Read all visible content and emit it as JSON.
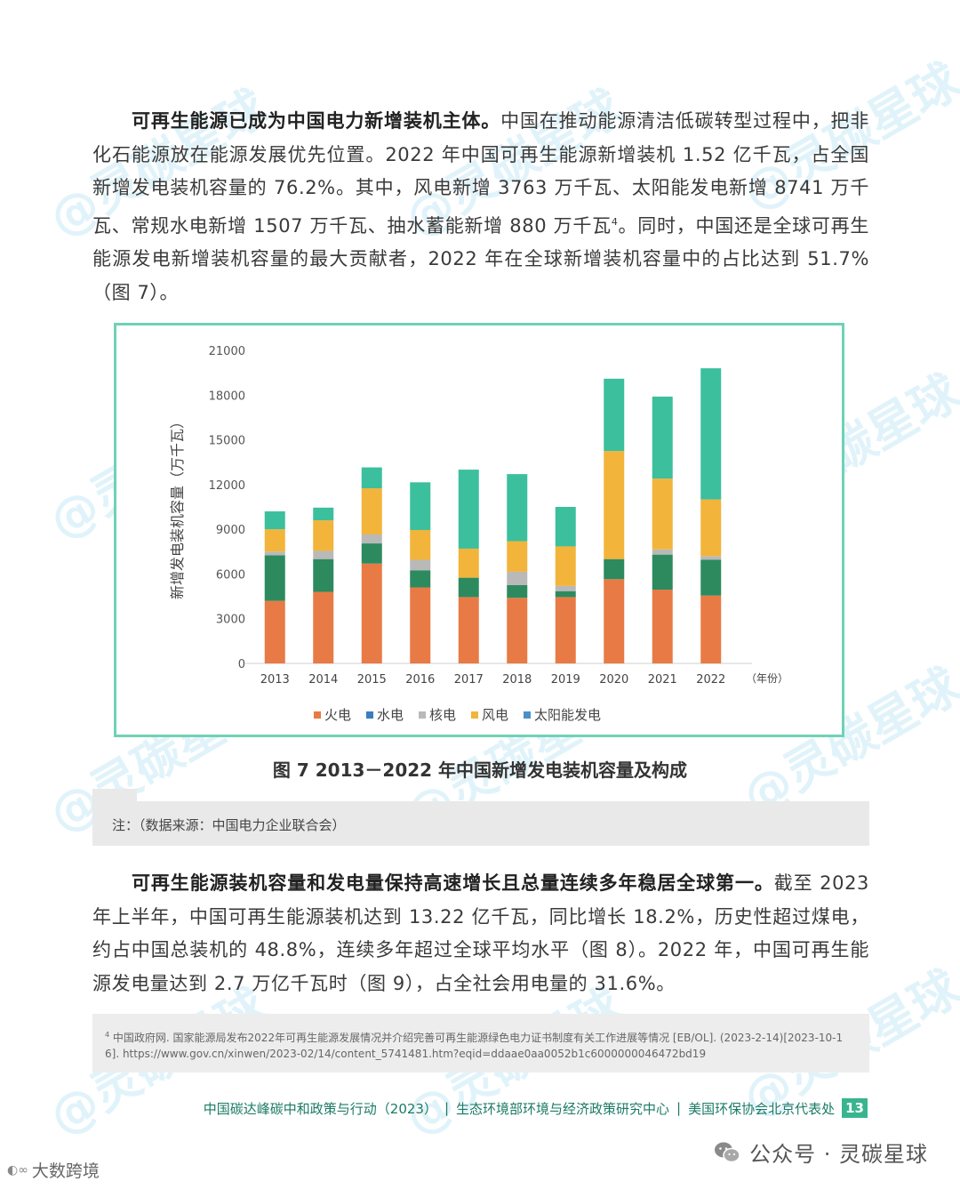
{
  "paragraph1": {
    "bold_lead": "可再生能源已成为中国电力新增装机主体。",
    "text_a": "中国在推动能源清洁低碳转型过程中，把非化石能源放在能源发展优先位置。2022 年中国可再生能源新增装机 1.52 亿千瓦，占全国新增发电装机容量的 76.2%。其中，风电新增 3763 万千瓦、太阳能发电新增 8741 万千瓦、常规水电新增 1507 万千瓦、抽水蓄能新增 880 万千瓦",
    "footnote_ref": "4",
    "text_b": "。同时，中国还是全球可再生能源发电新增装机容量的最大贡献者，2022 年在全球新增装机容量中的占比达到 51.7%（图 7）。"
  },
  "chart_data": {
    "type": "bar",
    "stacked": true,
    "ylabel": "新增发电装机容量（万千瓦）",
    "x_unit_label": "（年份）",
    "ylim": [
      0,
      21000
    ],
    "yticks": [
      "0",
      "3000",
      "6000",
      "9000",
      "12000",
      "15000",
      "18000",
      "21000"
    ],
    "categories": [
      "2013",
      "2014",
      "2015",
      "2016",
      "2017",
      "2018",
      "2019",
      "2020",
      "2021",
      "2022"
    ],
    "series": [
      {
        "name": "火电",
        "color": "#e87a45",
        "values": [
          4200,
          4800,
          6700,
          5100,
          4450,
          4400,
          4450,
          5650,
          4950,
          4550
        ]
      },
      {
        "name": "水电",
        "color": "#2d8a5f",
        "values": [
          3050,
          2200,
          1350,
          1150,
          1300,
          850,
          400,
          1350,
          2350,
          2400
        ]
      },
      {
        "name": "核电",
        "color": "#b9b9b9",
        "values": [
          250,
          550,
          600,
          700,
          0,
          900,
          350,
          0,
          350,
          250
        ]
      },
      {
        "name": "风电",
        "color": "#f2b43a",
        "values": [
          1500,
          2050,
          3100,
          2000,
          1950,
          2050,
          2650,
          7250,
          4750,
          3800
        ]
      },
      {
        "name": "太阳能发电",
        "color": "#3cbf9d",
        "values": [
          1200,
          850,
          1400,
          3200,
          5300,
          4500,
          2650,
          4850,
          5500,
          8800
        ]
      }
    ],
    "legend": [
      "火电",
      "水电",
      "核电",
      "风电",
      "太阳能发电"
    ],
    "legend_colors": [
      "#e87a45",
      "#3b7dbf",
      "#b9b9b9",
      "#f2b43a",
      "#4a90c8"
    ],
    "legend_position": "bottom",
    "grid": false
  },
  "figure": {
    "caption": "图 7   2013－2022 年中国新增发电装机容量及构成"
  },
  "note": {
    "text": "注：（数据来源：中国电力企业联合会）"
  },
  "paragraph2": {
    "bold_lead": "可再生能源装机容量和发电量保持高速增长且总量连续多年稳居全球第一。",
    "text": "截至 2023 年上半年，中国可再生能源装机达到 13.22 亿千瓦，同比增长 18.2%，历史性超过煤电，约占中国总装机的 48.8%，连续多年超过全球平均水平（图 8）。2022 年，中国可再生能源发电量达到 2.7 万亿千瓦时（图 9），占全社会用电量的 31.6%。"
  },
  "footnote": {
    "number": "4",
    "text": " 中国政府网. 国家能源局发布2022年可再生能源发展情况并介绍完善可再生能源绿色电力证书制度有关工作进展等情况 [EB/OL]. (2023-2-14)[2023-10-16]. https://www.gov.cn/xinwen/2023-02/14/content_5741481.htm?eqid=ddaae0aa0052b1c6000000046472bd19"
  },
  "footer": {
    "title": "中国碳达峰碳中和政策与行动（2023）",
    "org1": "生态环境部环境与经济政策研究中心",
    "org2": "美国环保协会北京代表处",
    "page": "13"
  },
  "wechat": {
    "label": "公众号 · 灵碳星球",
    "icon": "wechat-icon"
  },
  "corner_brand": "大数跨境",
  "watermark": "@灵碳星球"
}
